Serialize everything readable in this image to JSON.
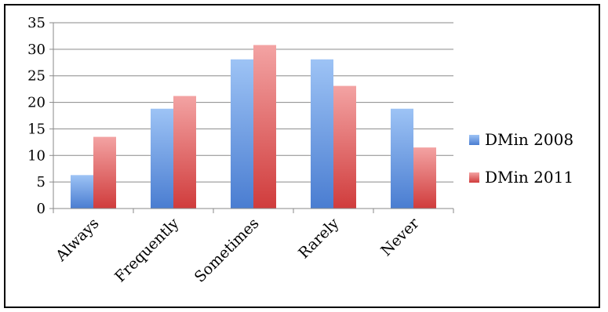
{
  "chart_data": {
    "type": "bar",
    "categories": [
      "Always",
      "Frequently",
      "Sometimes",
      "Rarely",
      "Never"
    ],
    "series": [
      {
        "name": "DMin 2008",
        "values": [
          6.3,
          18.8,
          28.1,
          28.1,
          18.8
        ]
      },
      {
        "name": "DMin 2011",
        "values": [
          13.5,
          21.2,
          30.8,
          23.1,
          11.5
        ]
      }
    ],
    "yticks": [
      "0",
      "5",
      "10",
      "15",
      "20",
      "25",
      "30",
      "35"
    ],
    "ylim": [
      0,
      35
    ],
    "grid": true,
    "legend": "right",
    "colors": {
      "DMin 2008": {
        "light": "#9dc3f5",
        "dark": "#4a7dd1"
      },
      "DMin 2011": {
        "light": "#f3a3a3",
        "dark": "#d03c3c"
      },
      "grid": "#8a8a8a"
    }
  }
}
